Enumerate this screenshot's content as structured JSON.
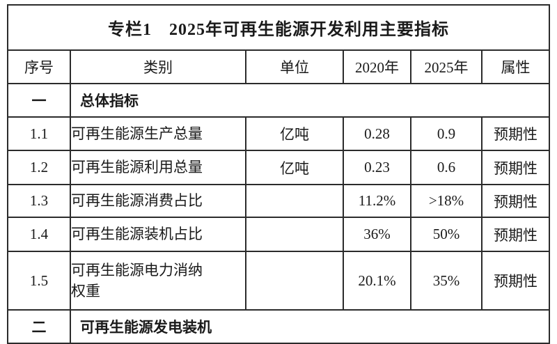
{
  "table": {
    "title": "专栏1　2025年可再生能源开发利用主要指标",
    "columns": [
      "序号",
      "类别",
      "单位",
      "2020年",
      "2025年",
      "属性"
    ],
    "rows": [
      {
        "type": "section",
        "no": "一",
        "label": "总体指标"
      },
      {
        "type": "data",
        "no": "1.1",
        "category": "可再生能源生产总量",
        "unit": "亿吨",
        "y2020": "0.28",
        "y2025": "0.9",
        "attr": "预期性"
      },
      {
        "type": "data",
        "no": "1.2",
        "category": "可再生能源利用总量",
        "unit": "亿吨",
        "y2020": "0.23",
        "y2025": "0.6",
        "attr": "预期性"
      },
      {
        "type": "data",
        "no": "1.3",
        "category": "可再生能源消费占比",
        "unit": "",
        "y2020": "11.2%",
        "y2025": ">18%",
        "attr": "预期性"
      },
      {
        "type": "data",
        "no": "1.4",
        "category": "可再生能源装机占比",
        "unit": "",
        "y2020": "36%",
        "y2025": "50%",
        "attr": "预期性"
      },
      {
        "type": "data",
        "no": "1.5",
        "category": "可再生能源电力消纳\n权重",
        "unit": "",
        "y2020": "20.1%",
        "y2025": "35%",
        "attr": "预期性"
      },
      {
        "type": "section",
        "no": "二",
        "label": "可再生能源发电装机"
      }
    ],
    "colors": {
      "border": "#2b2b2b",
      "text": "#1a1a1a",
      "background": "#ffffff"
    }
  }
}
